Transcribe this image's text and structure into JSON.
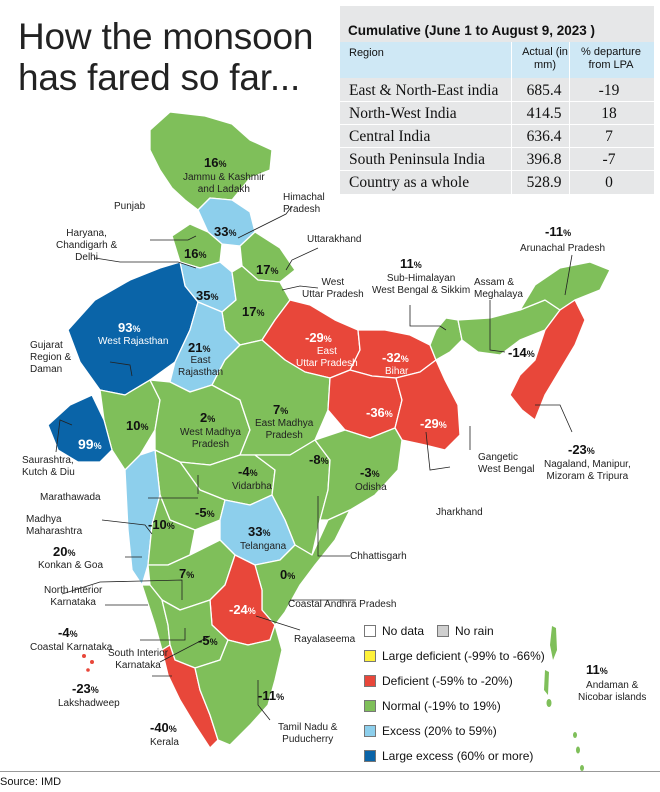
{
  "title": "How the monsoon has fared so far...",
  "table": {
    "caption": "Cumulative (June 1 to August 9, 2023 )",
    "headers": {
      "region": "Region",
      "actual": "Actual (in mm)",
      "departure": "% departure from LPA"
    },
    "rows": [
      {
        "region": "East & North-East india",
        "actual": "685.4",
        "departure": "-19"
      },
      {
        "region": "North-West India",
        "actual": "414.5",
        "departure": "18"
      },
      {
        "region": "Central India",
        "actual": "636.4",
        "departure": "7"
      },
      {
        "region": "South Peninsula India",
        "actual": "396.8",
        "departure": "-7"
      },
      {
        "region": "Country as a whole",
        "actual": "528.9",
        "departure": "0"
      }
    ]
  },
  "colors": {
    "normal": "#7fbf5a",
    "deficient": "#e8473a",
    "excess": "#8dcfec",
    "large_excess": "#0a64a8",
    "large_deficient": "#fff23a",
    "no_data": "#ffffff",
    "no_rain": "#cfcfcf",
    "table_bg": "#e6e7e8",
    "table_header": "#cfe8f5"
  },
  "subdivisions": [
    {
      "name": "Jammu & Kashmir and Ladakh",
      "value": "16",
      "category": "normal"
    },
    {
      "name": "Himachal Pradesh",
      "value": "33",
      "category": "excess"
    },
    {
      "name": "Punjab",
      "value": "16",
      "category": "normal"
    },
    {
      "name": "Haryana, Chandigarh & Delhi",
      "value": "35",
      "category": "excess"
    },
    {
      "name": "Uttarakhand",
      "value": "17",
      "category": "normal"
    },
    {
      "name": "West Uttar Pradesh",
      "value": "17",
      "category": "normal"
    },
    {
      "name": "East Uttar Pradesh",
      "value": "-29",
      "category": "deficient"
    },
    {
      "name": "Bihar",
      "value": "-32",
      "category": "deficient"
    },
    {
      "name": "Sub-Himalayan West Bengal & Sikkim",
      "value": "11",
      "category": "normal"
    },
    {
      "name": "Assam & Meghalaya",
      "value": "-14",
      "category": "normal"
    },
    {
      "name": "Arunachal Pradesh",
      "value": "-11",
      "category": "normal"
    },
    {
      "name": "Nagaland, Manipur, Mizoram & Tripura",
      "value": "-23",
      "category": "deficient"
    },
    {
      "name": "West Rajasthan",
      "value": "93",
      "category": "large_excess"
    },
    {
      "name": "East Rajasthan",
      "value": "21",
      "category": "excess"
    },
    {
      "name": "Gujarat Region & Daman",
      "value": "10",
      "category": "normal"
    },
    {
      "name": "Saurashtra, Kutch & Diu",
      "value": "99",
      "category": "large_excess"
    },
    {
      "name": "West Madhya Pradesh",
      "value": "2",
      "category": "normal"
    },
    {
      "name": "East Madhya Pradesh",
      "value": "7",
      "category": "normal"
    },
    {
      "name": "Jharkhand",
      "value": "-36",
      "category": "deficient"
    },
    {
      "name": "Gangetic West Bengal",
      "value": "-29",
      "category": "deficient"
    },
    {
      "name": "Vidarbha",
      "value": "-4",
      "category": "normal"
    },
    {
      "name": "Chhattisgarh",
      "value": "-8",
      "category": "normal"
    },
    {
      "name": "Odisha",
      "value": "-3",
      "category": "normal"
    },
    {
      "name": "Marathawada",
      "value": "-5",
      "category": "normal"
    },
    {
      "name": "Madhya Maharashtra",
      "value": "-10",
      "category": "normal"
    },
    {
      "name": "Konkan & Goa",
      "value": "20",
      "category": "excess"
    },
    {
      "name": "Telangana",
      "value": "33",
      "category": "excess"
    },
    {
      "name": "North Interior Karnataka",
      "value": "7",
      "category": "normal"
    },
    {
      "name": "Coastal Andhra Pradesh",
      "value": "0",
      "category": "normal"
    },
    {
      "name": "Rayalaseema",
      "value": "-24",
      "category": "deficient"
    },
    {
      "name": "Coastal Karnataka",
      "value": "-4",
      "category": "normal"
    },
    {
      "name": "South Interior Karnataka",
      "value": "-5",
      "category": "normal"
    },
    {
      "name": "Lakshadweep",
      "value": "-23",
      "category": "deficient"
    },
    {
      "name": "Kerala",
      "value": "-40",
      "category": "deficient"
    },
    {
      "name": "Tamil Nadu & Puducherry",
      "value": "-11",
      "category": "normal"
    },
    {
      "name": "Andaman & Nicobar islands",
      "value": "11",
      "category": "normal"
    }
  ],
  "labels": {
    "jk": [
      "Jammu & Kashmir",
      "and Ladakh"
    ],
    "hp": [
      "Himachal",
      "Pradesh"
    ],
    "punjab": "Punjab",
    "haryana": [
      "Haryana,",
      "Chandigarh &",
      "Delhi"
    ],
    "uk": "Uttarakhand",
    "wup": [
      "West",
      "Uttar Pradesh"
    ],
    "eup": [
      "East",
      "Uttar Pradesh"
    ],
    "bihar": "Bihar",
    "shwb": [
      "Sub-Himalayan",
      "West Bengal & Sikkim"
    ],
    "assam": [
      "Assam &",
      "Meghalaya"
    ],
    "arunachal": "Arunachal Pradesh",
    "nmmt": [
      "Nagaland, Manipur,",
      "Mizoram & Tripura"
    ],
    "wraj": "West Rajasthan",
    "eraj": [
      "East",
      "Rajasthan"
    ],
    "guj": [
      "Gujarat",
      "Region &",
      "Daman"
    ],
    "sau": [
      "Saurashtra,",
      "Kutch & Diu"
    ],
    "wmp": [
      "West Madhya",
      "Pradesh"
    ],
    "emp": [
      "East Madhya",
      "Pradesh"
    ],
    "jharkhand": "Jharkhand",
    "gwb": [
      "Gangetic",
      "West Bengal"
    ],
    "vidarbha": "Vidarbha",
    "chh": "Chhattisgarh",
    "odisha": "Odisha",
    "mara": "Marathawada",
    "mm": [
      "Madhya",
      "Maharashtra"
    ],
    "konkan": "Konkan & Goa",
    "tel": "Telangana",
    "nik": [
      "North Interior",
      "Karnataka"
    ],
    "cap": "Coastal Andhra Pradesh",
    "rayal": "Rayalaseema",
    "ck": "Coastal Karnataka",
    "sik": [
      "South Interior",
      "Karnataka"
    ],
    "lak": "Lakshadweep",
    "kerala": "Kerala",
    "tn": [
      "Tamil Nadu &",
      "Puducherry"
    ],
    "an": [
      "Andaman &",
      "Nicobar islands"
    ],
    "pct_sign": "%"
  },
  "legend": [
    {
      "label": "No data",
      "category": "no_data"
    },
    {
      "label": "No rain",
      "category": "no_rain"
    },
    {
      "label": "Large deficient (-99% to -66%)",
      "category": "large_deficient"
    },
    {
      "label": "Deficient (-59% to -20%)",
      "category": "deficient"
    },
    {
      "label": "Normal (-19% to 19%)",
      "category": "normal"
    },
    {
      "label": "Excess (20% to 59%)",
      "category": "excess"
    },
    {
      "label": "Large excess (60% or more)",
      "category": "large_excess"
    }
  ],
  "source": "Source: IMD"
}
